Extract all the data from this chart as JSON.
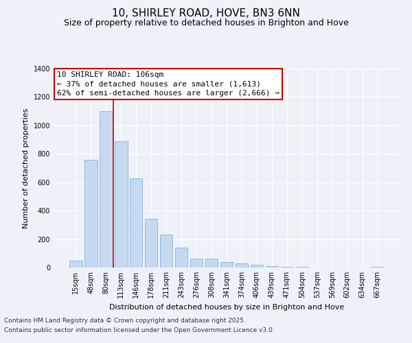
{
  "title": "10, SHIRLEY ROAD, HOVE, BN3 6NN",
  "subtitle": "Size of property relative to detached houses in Brighton and Hove",
  "xlabel": "Distribution of detached houses by size in Brighton and Hove",
  "ylabel": "Number of detached properties",
  "categories": [
    "15sqm",
    "48sqm",
    "80sqm",
    "113sqm",
    "146sqm",
    "178sqm",
    "211sqm",
    "243sqm",
    "276sqm",
    "308sqm",
    "341sqm",
    "374sqm",
    "406sqm",
    "439sqm",
    "471sqm",
    "504sqm",
    "537sqm",
    "569sqm",
    "602sqm",
    "634sqm",
    "667sqm"
  ],
  "values": [
    50,
    760,
    1100,
    890,
    630,
    345,
    230,
    140,
    65,
    65,
    38,
    30,
    20,
    10,
    5,
    3,
    1,
    0,
    0,
    0,
    5
  ],
  "bar_color": "#c6d9f0",
  "bar_edgecolor": "#8ab0d8",
  "vline_x_index": 3.0,
  "vline_color": "#cc0000",
  "annotation_line1": "10 SHIRLEY ROAD: 106sqm",
  "annotation_line2": "← 37% of detached houses are smaller (1,613)",
  "annotation_line3": "62% of semi-detached houses are larger (2,666) →",
  "annotation_box_color": "#cc0000",
  "ylim": [
    0,
    1400
  ],
  "yticks": [
    0,
    200,
    400,
    600,
    800,
    1000,
    1200,
    1400
  ],
  "background_color": "#eef2f8",
  "grid_color": "#ffffff",
  "footer_line1": "Contains HM Land Registry data © Crown copyright and database right 2025.",
  "footer_line2": "Contains public sector information licensed under the Open Government Licence v3.0.",
  "title_fontsize": 11,
  "subtitle_fontsize": 9,
  "axis_label_fontsize": 8,
  "ylabel_fontsize": 8,
  "tick_fontsize": 7,
  "annotation_fontsize": 8,
  "footer_fontsize": 6.5
}
